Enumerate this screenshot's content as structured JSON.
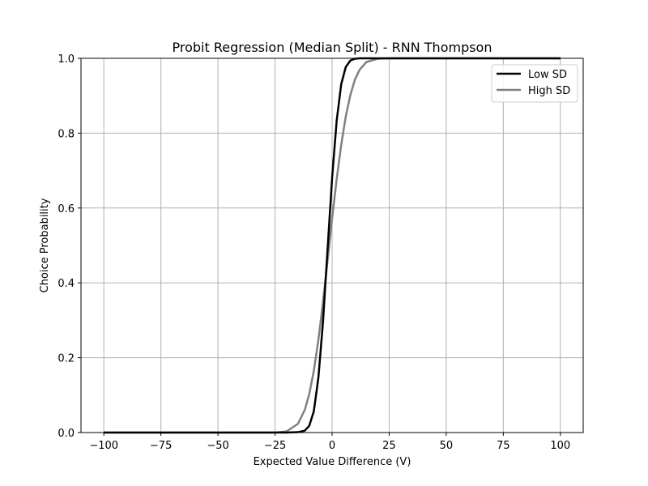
{
  "chart_data": {
    "type": "line",
    "title": "Probit Regression (Median Split) - RNN Thompson",
    "xlabel": "Expected Value Difference (V)",
    "ylabel": "Choice Probability",
    "xlim": [
      -110,
      110
    ],
    "ylim": [
      0,
      1
    ],
    "x_ticks": [
      -100,
      -75,
      -50,
      -25,
      0,
      25,
      50,
      75,
      100
    ],
    "x_tick_labels": [
      "−100",
      "−75",
      "−50",
      "−25",
      "0",
      "25",
      "50",
      "75",
      "100"
    ],
    "y_ticks": [
      0,
      0.2,
      0.4,
      0.6,
      0.8,
      1.0
    ],
    "y_tick_labels": [
      "0.0",
      "0.2",
      "0.4",
      "0.6",
      "0.8",
      "1.0"
    ],
    "grid": true,
    "legend_position": "top-right",
    "x": [
      -100,
      -50,
      -25,
      -20,
      -15,
      -12,
      -10,
      -8,
      -6,
      -4,
      -2,
      0,
      2,
      4,
      6,
      8,
      10,
      12,
      15,
      20,
      25,
      50,
      100
    ],
    "series": [
      {
        "name": "Low SD",
        "color": "#000000",
        "values": [
          0,
          0,
          0,
          0,
          0.001,
          0.005,
          0.018,
          0.057,
          0.147,
          0.295,
          0.488,
          0.68,
          0.833,
          0.931,
          0.977,
          0.994,
          0.999,
          1.0,
          1.0,
          1.0,
          1.0,
          1.0,
          1.0
        ]
      },
      {
        "name": "High SD",
        "color": "#808080",
        "values": [
          0,
          0,
          0,
          0.003,
          0.023,
          0.06,
          0.103,
          0.165,
          0.248,
          0.348,
          0.459,
          0.572,
          0.677,
          0.769,
          0.845,
          0.902,
          0.943,
          0.969,
          0.99,
          0.999,
          1.0,
          1.0,
          1.0
        ]
      }
    ]
  }
}
